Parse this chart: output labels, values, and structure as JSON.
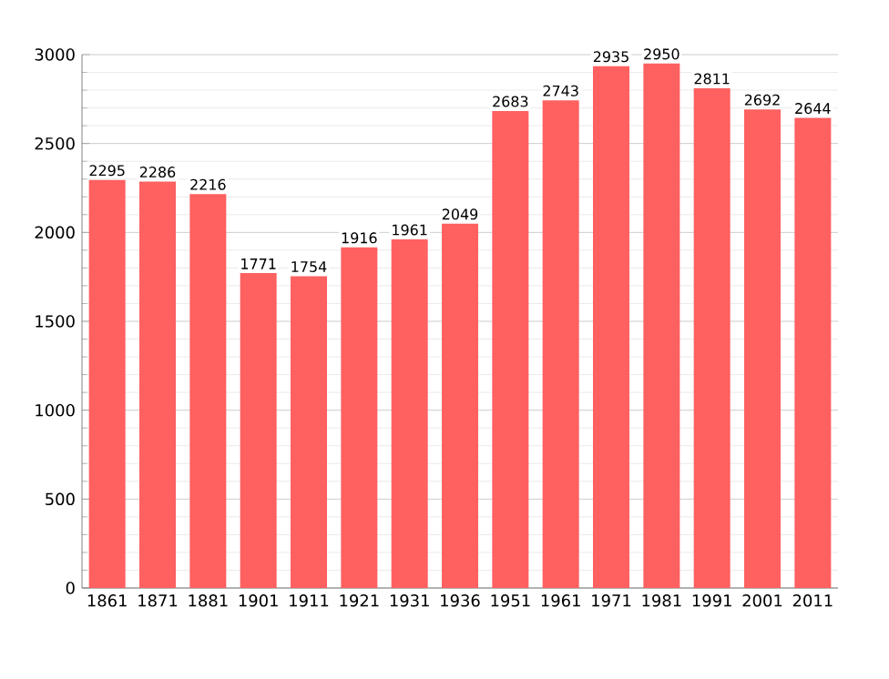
{
  "chart_data": {
    "type": "bar",
    "categories": [
      "1861",
      "1871",
      "1881",
      "1901",
      "1911",
      "1921",
      "1931",
      "1936",
      "1951",
      "1961",
      "1971",
      "1981",
      "1991",
      "2001",
      "2011"
    ],
    "values": [
      2295,
      2286,
      2216,
      1771,
      1754,
      1916,
      1961,
      2049,
      2683,
      2743,
      2935,
      2950,
      2811,
      2692,
      2644
    ],
    "color": "#ff6060",
    "ylim": [
      0,
      3000
    ],
    "yticks": [
      0,
      500,
      1000,
      1500,
      2000,
      2500,
      3000
    ],
    "grid": "y",
    "data_labels": true
  }
}
